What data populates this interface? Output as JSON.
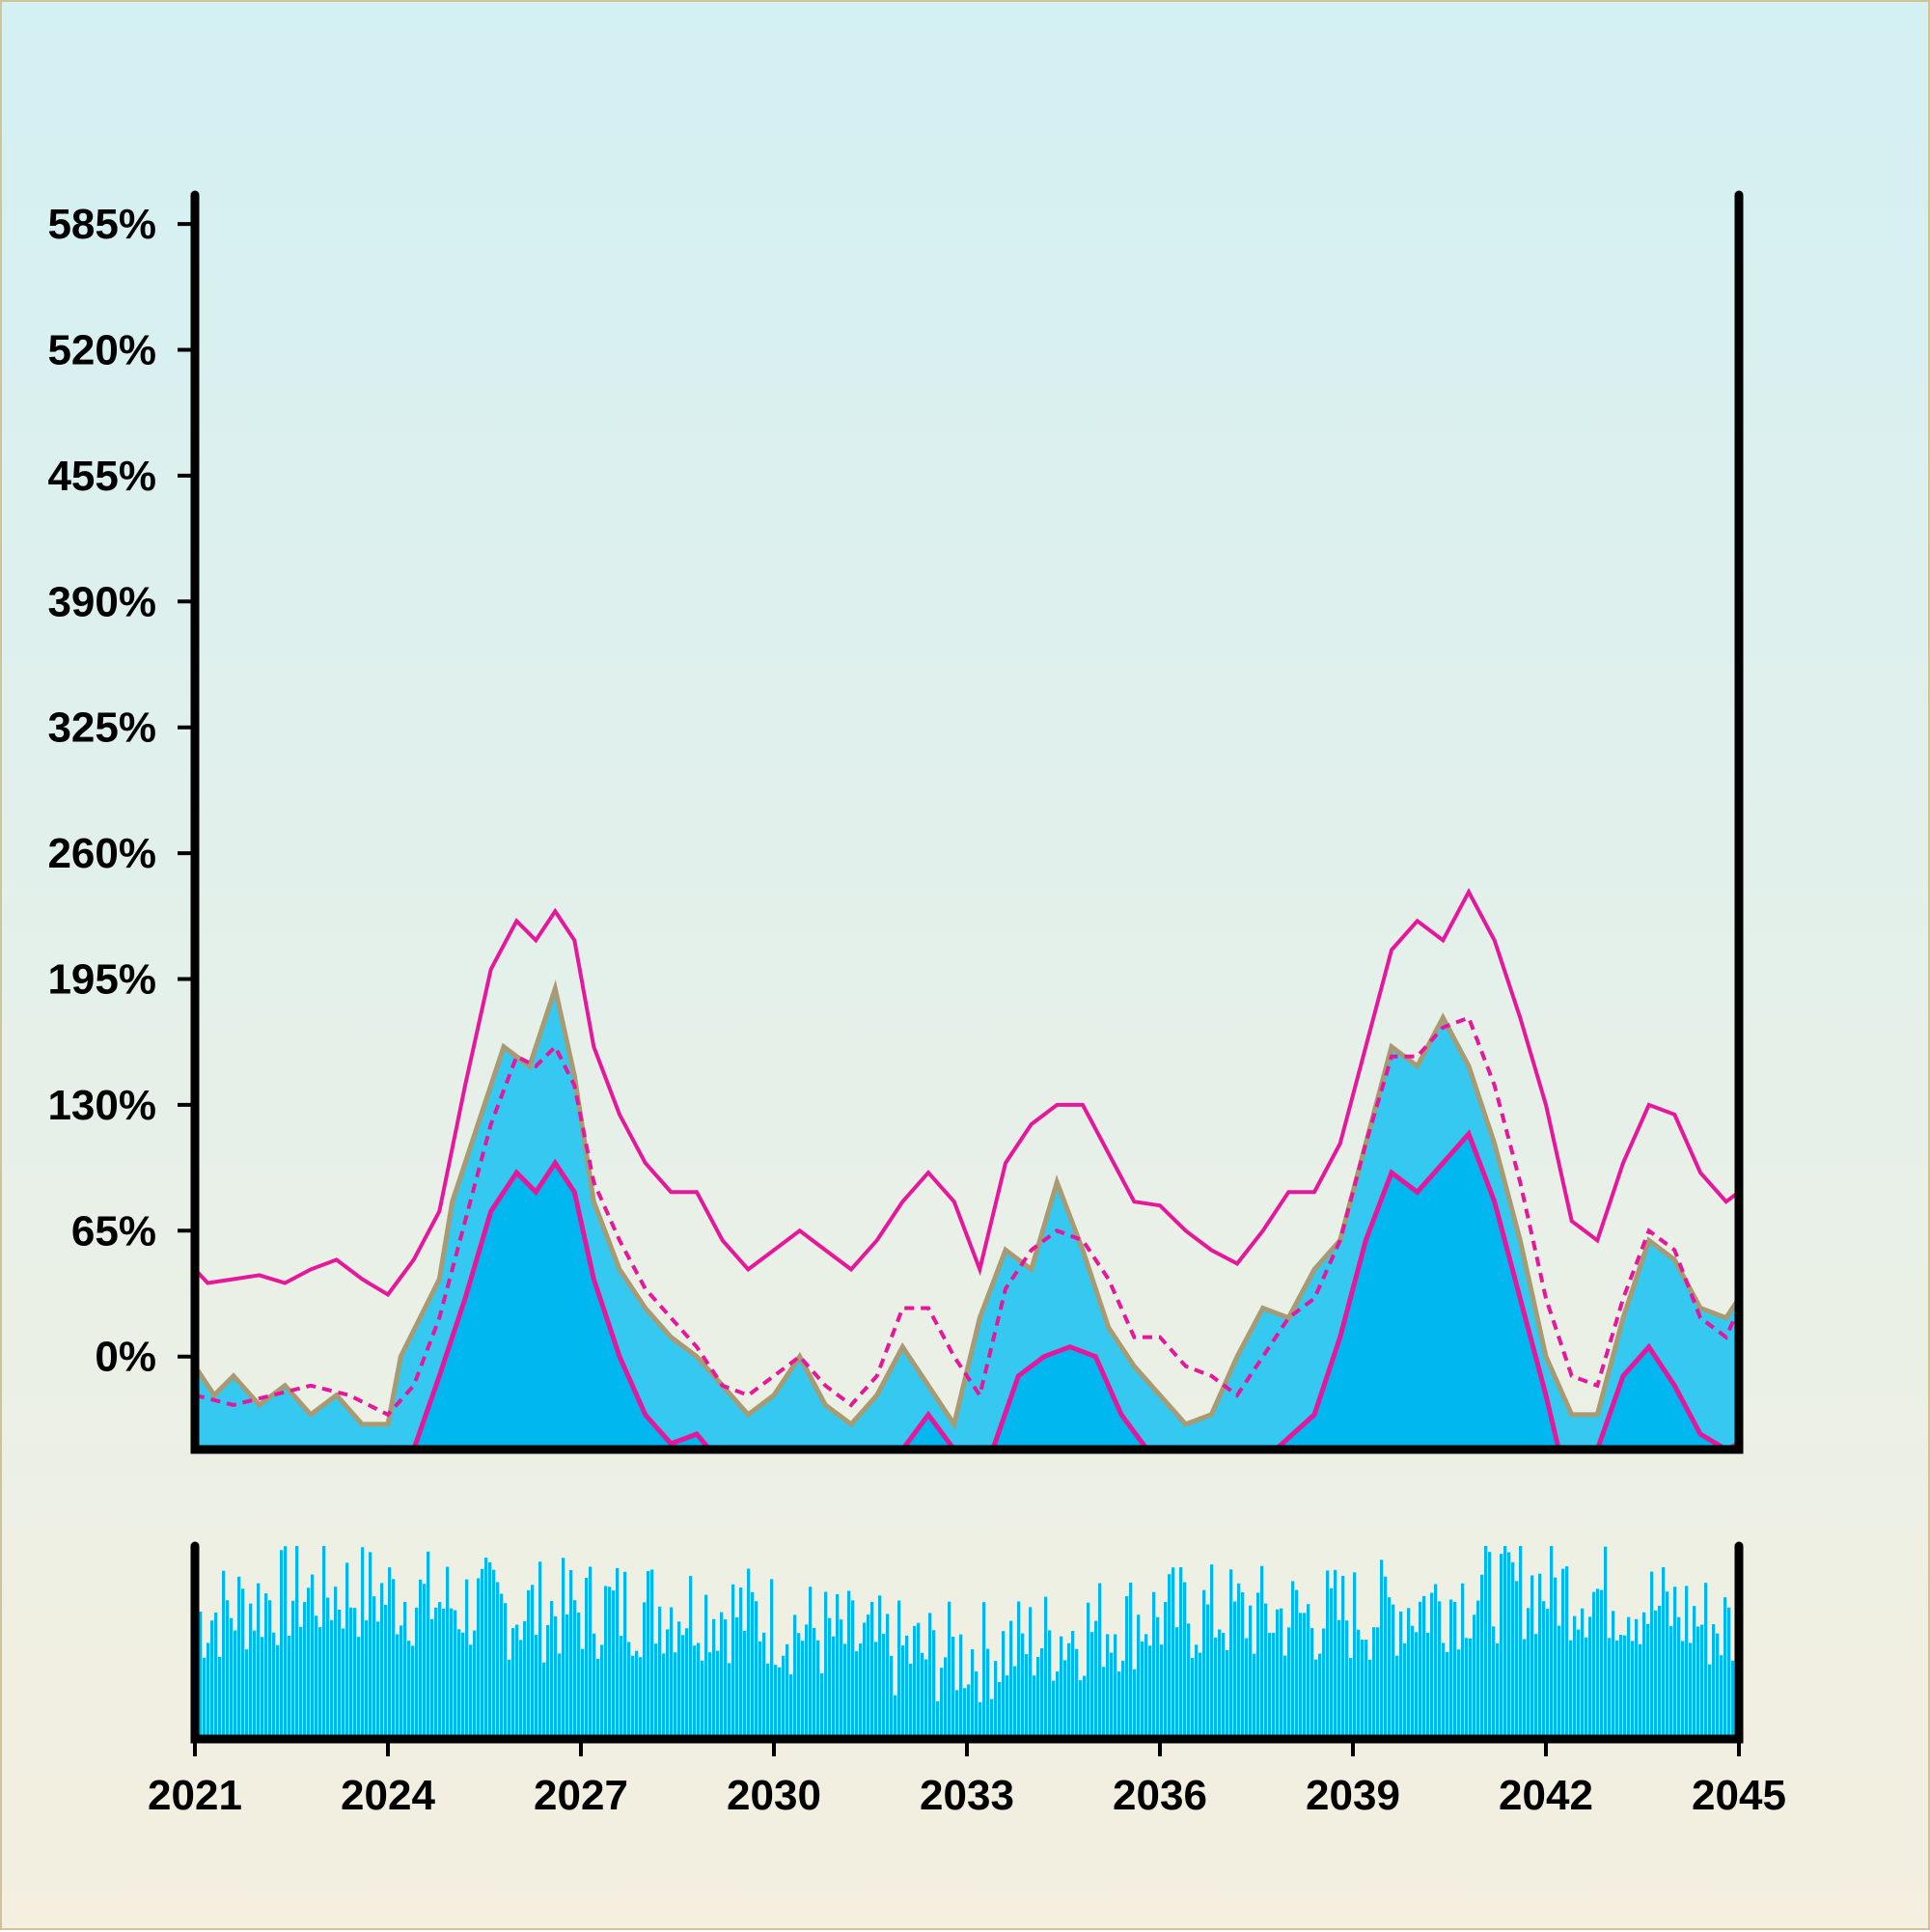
{
  "chart_data": {
    "type": "area",
    "x_axis": {
      "tick_labels": [
        "2021",
        "2024",
        "2027",
        "2030",
        "2033",
        "2036",
        "2039",
        "2042",
        "2045"
      ],
      "range": [
        2021,
        2045
      ]
    },
    "y_axis": {
      "tick_labels": [
        "0%",
        "65%",
        "130%",
        "195%",
        "260%",
        "325%",
        "390%",
        "455%",
        "520%",
        "585%"
      ],
      "tick_values": [
        0,
        65,
        130,
        195,
        260,
        325,
        390,
        455,
        520,
        585
      ],
      "range": [
        -48,
        600
      ],
      "unit": "%"
    },
    "grid": false,
    "legend": "none",
    "series": [
      {
        "role": "price-step",
        "values": [
          [
            2021.0,
            -5
          ],
          [
            2021.3,
            -20
          ],
          [
            2021.6,
            -10
          ],
          [
            2022.0,
            -25
          ],
          [
            2022.4,
            -15
          ],
          [
            2022.8,
            -30
          ],
          [
            2023.2,
            -20
          ],
          [
            2023.6,
            -35
          ],
          [
            2024.0,
            -35
          ],
          [
            2024.2,
            0
          ],
          [
            2024.5,
            20
          ],
          [
            2024.8,
            40
          ],
          [
            2025.0,
            80
          ],
          [
            2025.4,
            120
          ],
          [
            2025.8,
            160
          ],
          [
            2026.2,
            150
          ],
          [
            2026.6,
            190
          ],
          [
            2026.9,
            145
          ],
          [
            2027.2,
            80
          ],
          [
            2027.6,
            45
          ],
          [
            2028.0,
            25
          ],
          [
            2028.4,
            10
          ],
          [
            2028.8,
            0
          ],
          [
            2029.2,
            -15
          ],
          [
            2029.6,
            -30
          ],
          [
            2030.0,
            -20
          ],
          [
            2030.4,
            0
          ],
          [
            2030.8,
            -25
          ],
          [
            2031.2,
            -35
          ],
          [
            2031.6,
            -20
          ],
          [
            2032.0,
            5
          ],
          [
            2032.4,
            -15
          ],
          [
            2032.8,
            -35
          ],
          [
            2033.2,
            20
          ],
          [
            2033.6,
            55
          ],
          [
            2034.0,
            45
          ],
          [
            2034.4,
            90
          ],
          [
            2034.8,
            55
          ],
          [
            2035.2,
            15
          ],
          [
            2035.6,
            -5
          ],
          [
            2036.0,
            -20
          ],
          [
            2036.4,
            -35
          ],
          [
            2036.8,
            -30
          ],
          [
            2037.2,
            0
          ],
          [
            2037.6,
            25
          ],
          [
            2038.0,
            20
          ],
          [
            2038.4,
            45
          ],
          [
            2038.8,
            60
          ],
          [
            2039.2,
            110
          ],
          [
            2039.6,
            160
          ],
          [
            2040.0,
            150
          ],
          [
            2040.4,
            175
          ],
          [
            2040.8,
            150
          ],
          [
            2041.2,
            110
          ],
          [
            2041.6,
            60
          ],
          [
            2042.0,
            0
          ],
          [
            2042.4,
            -30
          ],
          [
            2042.8,
            -30
          ],
          [
            2043.2,
            20
          ],
          [
            2043.6,
            60
          ],
          [
            2044.0,
            50
          ],
          [
            2044.4,
            25
          ],
          [
            2044.8,
            20
          ],
          [
            2045.0,
            30
          ]
        ]
      },
      {
        "role": "upper-band",
        "values": [
          [
            2021.0,
            45
          ],
          [
            2021.2,
            38
          ],
          [
            2021.6,
            40
          ],
          [
            2022.0,
            42
          ],
          [
            2022.4,
            38
          ],
          [
            2022.8,
            45
          ],
          [
            2023.2,
            50
          ],
          [
            2023.6,
            40
          ],
          [
            2024.0,
            32
          ],
          [
            2024.4,
            50
          ],
          [
            2024.8,
            75
          ],
          [
            2025.2,
            140
          ],
          [
            2025.6,
            200
          ],
          [
            2026.0,
            225
          ],
          [
            2026.3,
            215
          ],
          [
            2026.6,
            230
          ],
          [
            2026.9,
            215
          ],
          [
            2027.2,
            160
          ],
          [
            2027.6,
            125
          ],
          [
            2028.0,
            100
          ],
          [
            2028.4,
            85
          ],
          [
            2028.8,
            85
          ],
          [
            2029.2,
            60
          ],
          [
            2029.6,
            45
          ],
          [
            2030.0,
            55
          ],
          [
            2030.4,
            65
          ],
          [
            2030.8,
            55
          ],
          [
            2031.2,
            45
          ],
          [
            2031.6,
            60
          ],
          [
            2032.0,
            80
          ],
          [
            2032.4,
            95
          ],
          [
            2032.8,
            80
          ],
          [
            2033.2,
            45
          ],
          [
            2033.6,
            100
          ],
          [
            2034.0,
            120
          ],
          [
            2034.4,
            130
          ],
          [
            2034.8,
            130
          ],
          [
            2035.2,
            105
          ],
          [
            2035.6,
            80
          ],
          [
            2036.0,
            78
          ],
          [
            2036.4,
            65
          ],
          [
            2036.8,
            55
          ],
          [
            2037.2,
            48
          ],
          [
            2037.6,
            65
          ],
          [
            2038.0,
            85
          ],
          [
            2038.4,
            85
          ],
          [
            2038.8,
            110
          ],
          [
            2039.2,
            160
          ],
          [
            2039.6,
            210
          ],
          [
            2040.0,
            225
          ],
          [
            2040.4,
            215
          ],
          [
            2040.8,
            240
          ],
          [
            2041.2,
            215
          ],
          [
            2041.6,
            175
          ],
          [
            2042.0,
            130
          ],
          [
            2042.4,
            70
          ],
          [
            2042.8,
            60
          ],
          [
            2043.2,
            100
          ],
          [
            2043.6,
            130
          ],
          [
            2044.0,
            125
          ],
          [
            2044.4,
            95
          ],
          [
            2044.8,
            80
          ],
          [
            2045.0,
            85
          ]
        ]
      },
      {
        "role": "middle-band",
        "values": [
          [
            2021.0,
            -20
          ],
          [
            2021.6,
            -25
          ],
          [
            2022.2,
            -20
          ],
          [
            2022.8,
            -15
          ],
          [
            2023.4,
            -20
          ],
          [
            2024.0,
            -30
          ],
          [
            2024.4,
            -15
          ],
          [
            2024.8,
            20
          ],
          [
            2025.2,
            70
          ],
          [
            2025.6,
            120
          ],
          [
            2026.0,
            155
          ],
          [
            2026.3,
            150
          ],
          [
            2026.6,
            160
          ],
          [
            2026.9,
            140
          ],
          [
            2027.2,
            90
          ],
          [
            2027.6,
            60
          ],
          [
            2028.0,
            35
          ],
          [
            2028.4,
            20
          ],
          [
            2028.8,
            5
          ],
          [
            2029.2,
            -15
          ],
          [
            2029.6,
            -20
          ],
          [
            2030.0,
            -10
          ],
          [
            2030.4,
            0
          ],
          [
            2030.8,
            -15
          ],
          [
            2031.2,
            -25
          ],
          [
            2031.6,
            -10
          ],
          [
            2032.0,
            25
          ],
          [
            2032.4,
            25
          ],
          [
            2032.8,
            0
          ],
          [
            2033.2,
            -20
          ],
          [
            2033.6,
            35
          ],
          [
            2034.0,
            55
          ],
          [
            2034.4,
            65
          ],
          [
            2034.8,
            60
          ],
          [
            2035.2,
            40
          ],
          [
            2035.6,
            10
          ],
          [
            2036.0,
            10
          ],
          [
            2036.4,
            -5
          ],
          [
            2036.8,
            -10
          ],
          [
            2037.2,
            -20
          ],
          [
            2037.6,
            0
          ],
          [
            2038.0,
            20
          ],
          [
            2038.4,
            30
          ],
          [
            2038.8,
            60
          ],
          [
            2039.2,
            110
          ],
          [
            2039.6,
            155
          ],
          [
            2040.0,
            155
          ],
          [
            2040.4,
            170
          ],
          [
            2040.8,
            175
          ],
          [
            2041.2,
            140
          ],
          [
            2041.6,
            90
          ],
          [
            2042.0,
            30
          ],
          [
            2042.4,
            -10
          ],
          [
            2042.8,
            -15
          ],
          [
            2043.2,
            30
          ],
          [
            2043.6,
            65
          ],
          [
            2044.0,
            55
          ],
          [
            2044.4,
            20
          ],
          [
            2044.8,
            10
          ],
          [
            2045.0,
            25
          ]
        ]
      },
      {
        "role": "lower-band",
        "values": [
          [
            2024.4,
            -48
          ],
          [
            2024.8,
            -10
          ],
          [
            2025.2,
            30
          ],
          [
            2025.6,
            75
          ],
          [
            2026.0,
            95
          ],
          [
            2026.3,
            85
          ],
          [
            2026.6,
            100
          ],
          [
            2026.9,
            85
          ],
          [
            2027.2,
            40
          ],
          [
            2027.6,
            0
          ],
          [
            2028.0,
            -30
          ],
          [
            2028.4,
            -45
          ],
          [
            2028.8,
            -40
          ],
          [
            2029.0,
            -48
          ],
          [
            2032.0,
            -48
          ],
          [
            2032.4,
            -30
          ],
          [
            2032.8,
            -48
          ],
          [
            2033.4,
            -48
          ],
          [
            2033.8,
            -10
          ],
          [
            2034.2,
            0
          ],
          [
            2034.6,
            5
          ],
          [
            2035.0,
            0
          ],
          [
            2035.4,
            -30
          ],
          [
            2035.8,
            -48
          ],
          [
            2037.8,
            -48
          ],
          [
            2038.4,
            -30
          ],
          [
            2038.8,
            10
          ],
          [
            2039.2,
            60
          ],
          [
            2039.6,
            95
          ],
          [
            2040.0,
            85
          ],
          [
            2040.4,
            100
          ],
          [
            2040.8,
            115
          ],
          [
            2041.2,
            80
          ],
          [
            2041.6,
            30
          ],
          [
            2042.0,
            -20
          ],
          [
            2042.2,
            -48
          ],
          [
            2042.8,
            -48
          ],
          [
            2043.2,
            -10
          ],
          [
            2043.6,
            5
          ],
          [
            2044.0,
            -15
          ],
          [
            2044.4,
            -40
          ],
          [
            2044.8,
            -48
          ],
          [
            2045.0,
            -45
          ]
        ]
      }
    ],
    "volume_panel": {
      "type": "bar",
      "bars": 400,
      "range": [
        0,
        100
      ]
    },
    "colors": {
      "area_light": "#35c8f0",
      "area_dark": "#00b8ef",
      "price_step": "#a89a72",
      "band": "#e6179b",
      "axis": "#000000",
      "volume": "#00b8ef"
    }
  }
}
